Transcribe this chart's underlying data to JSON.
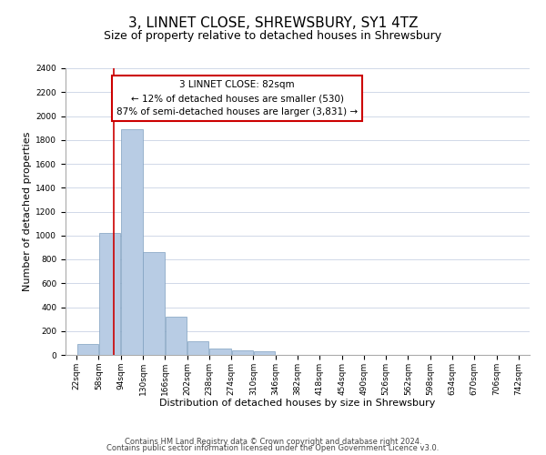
{
  "title": "3, LINNET CLOSE, SHREWSBURY, SY1 4TZ",
  "subtitle": "Size of property relative to detached houses in Shrewsbury",
  "xlabel": "Distribution of detached houses by size in Shrewsbury",
  "ylabel": "Number of detached properties",
  "bin_labels": [
    "22sqm",
    "58sqm",
    "94sqm",
    "130sqm",
    "166sqm",
    "202sqm",
    "238sqm",
    "274sqm",
    "310sqm",
    "346sqm",
    "382sqm",
    "418sqm",
    "454sqm",
    "490sqm",
    "526sqm",
    "562sqm",
    "598sqm",
    "634sqm",
    "670sqm",
    "706sqm",
    "742sqm"
  ],
  "bar_values": [
    90,
    1020,
    1890,
    860,
    320,
    115,
    55,
    40,
    30,
    0,
    0,
    0,
    0,
    0,
    0,
    0,
    0,
    0,
    0,
    0
  ],
  "bar_color": "#b8cce4",
  "bar_edge_color": "#7f9fbf",
  "property_line_x": 82,
  "bin_edges_values": [
    22,
    58,
    94,
    130,
    166,
    202,
    238,
    274,
    310,
    346,
    382,
    418,
    454,
    490,
    526,
    562,
    598,
    634,
    670,
    706,
    742
  ],
  "annotation_text": "3 LINNET CLOSE: 82sqm\n← 12% of detached houses are smaller (530)\n87% of semi-detached houses are larger (3,831) →",
  "annotation_box_color": "#ffffff",
  "annotation_box_edge": "#cc0000",
  "red_line_color": "#cc0000",
  "ylim": [
    0,
    2400
  ],
  "yticks": [
    0,
    200,
    400,
    600,
    800,
    1000,
    1200,
    1400,
    1600,
    1800,
    2000,
    2200,
    2400
  ],
  "footer1": "Contains HM Land Registry data © Crown copyright and database right 2024.",
  "footer2": "Contains public sector information licensed under the Open Government Licence v3.0.",
  "bg_color": "#ffffff",
  "grid_color": "#d0d8e8",
  "title_fontsize": 11,
  "subtitle_fontsize": 9,
  "axis_label_fontsize": 8,
  "tick_fontsize": 6.5,
  "annotation_fontsize": 7.5,
  "footer_fontsize": 6
}
